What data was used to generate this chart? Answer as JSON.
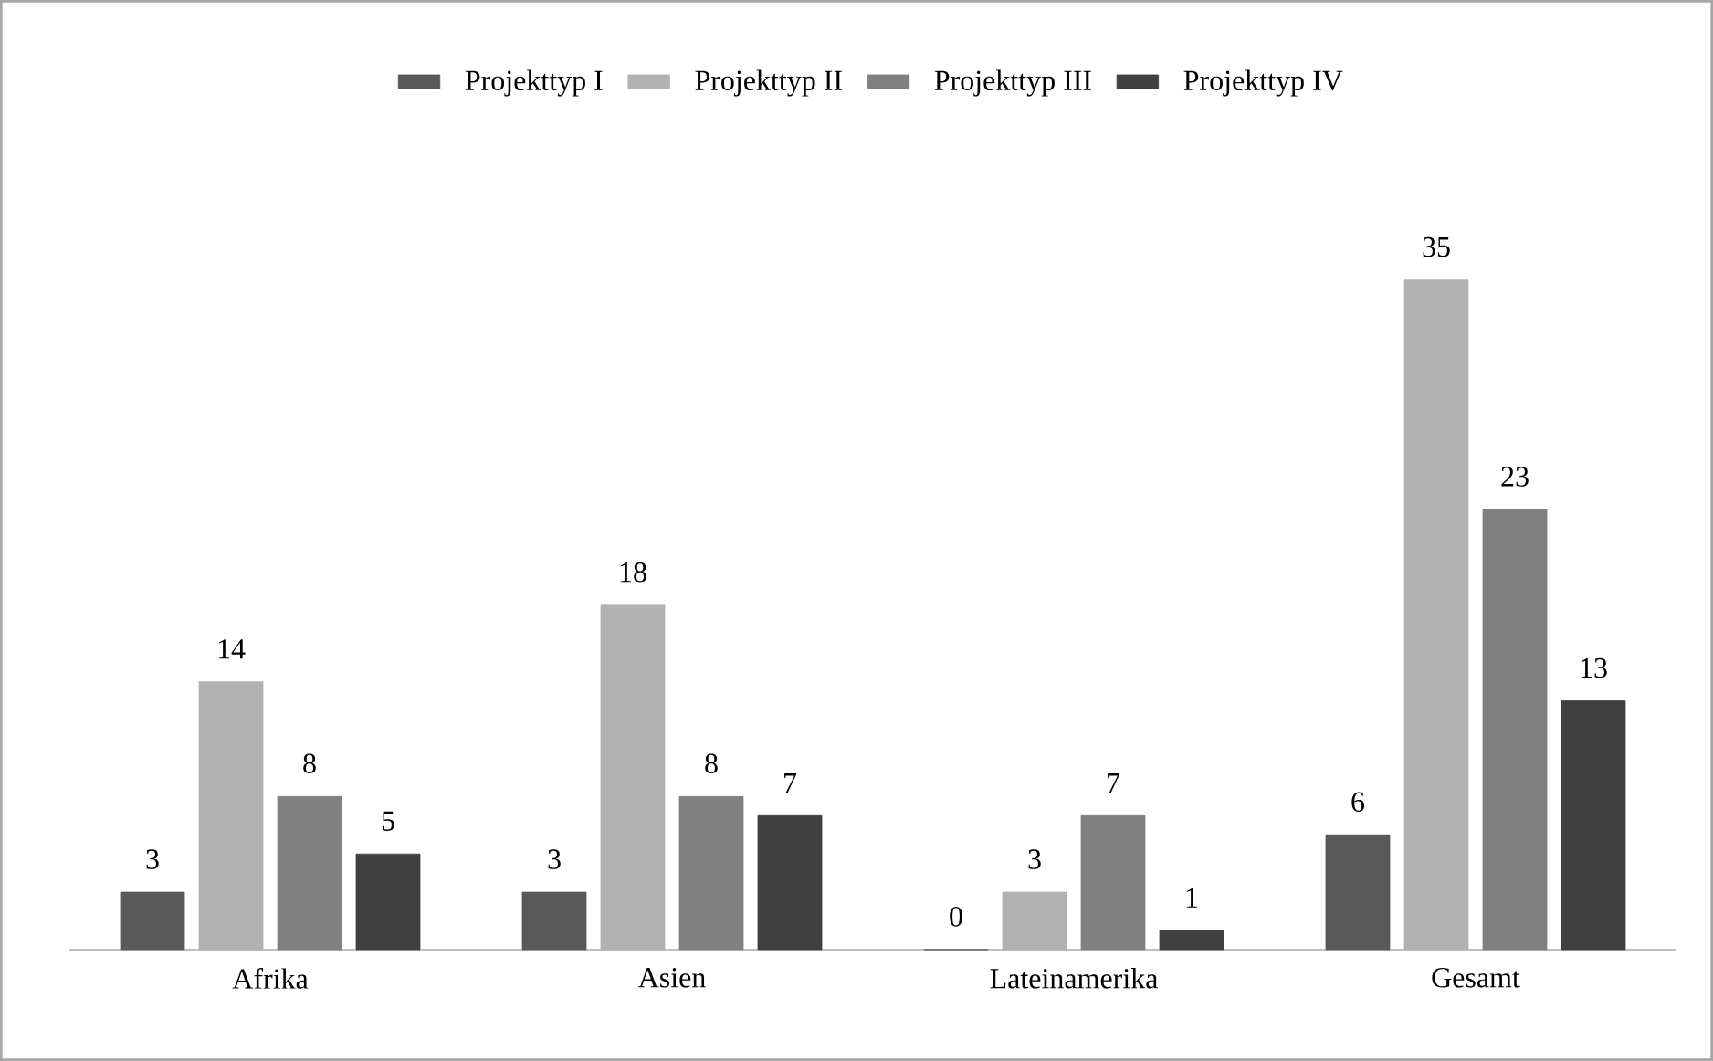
{
  "chart_data": {
    "type": "bar",
    "categories": [
      "Afrika",
      "Asien",
      "Lateinamerika",
      "Gesamt"
    ],
    "series": [
      {
        "name": "Projekttyp I",
        "color": "#595959",
        "values": [
          3,
          3,
          0,
          6
        ]
      },
      {
        "name": "Projekttyp II",
        "color": "#b2b2b2",
        "values": [
          14,
          18,
          3,
          35
        ]
      },
      {
        "name": "Projekttyp III",
        "color": "#808080",
        "values": [
          8,
          8,
          7,
          23
        ]
      },
      {
        "name": "Projekttyp IV",
        "color": "#404040",
        "values": [
          5,
          7,
          1,
          13
        ]
      }
    ],
    "data_labels": true,
    "legend": "top",
    "grid": false
  }
}
